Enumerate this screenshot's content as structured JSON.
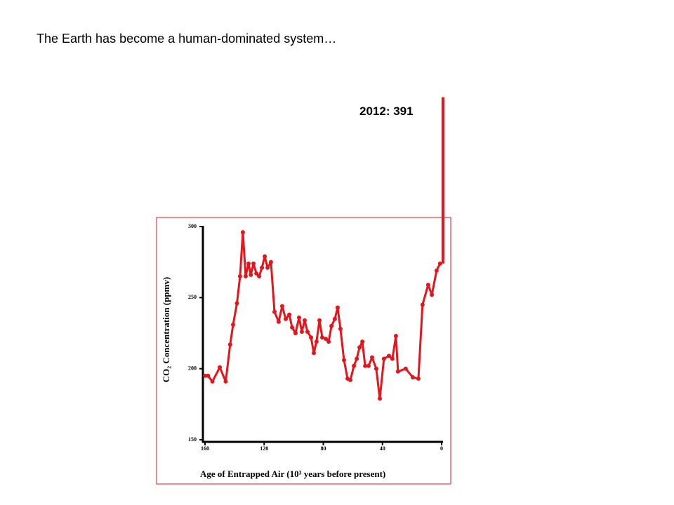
{
  "slide_title": "The Earth has become a human-dominated system…",
  "chart_data": {
    "type": "line",
    "xlabel": "Age of Entrapped Air (10³ years before present)",
    "ylabel": "CO₂ Concentration (ppmv)",
    "xlim": [
      160,
      0
    ],
    "xticks": [
      160,
      120,
      80,
      40,
      0
    ],
    "ylim": [
      150,
      300
    ],
    "yticks": [
      150,
      200,
      250,
      300
    ],
    "annotation": {
      "label": "2012: 391",
      "value": 391
    },
    "series": [
      {
        "color": "#e8141b",
        "x": [
          160,
          158,
          155,
          150,
          146,
          143,
          141,
          138.4,
          136.3,
          134.4,
          132.5,
          130.6,
          129,
          127.2,
          125.3,
          123.4,
          121.5,
          119.6,
          117.7,
          115.4,
          113,
          110.2,
          107.8,
          105.4,
          103,
          101.1,
          98.8,
          96.4,
          94.5,
          92.6,
          90.7,
          88.3,
          86.4,
          84.6,
          82.6,
          80.7,
          78.3,
          76.4,
          74.5,
          72.2,
          70.3,
          68.4,
          66,
          63.6,
          61.7,
          59.3,
          57.4,
          55.5,
          53.6,
          51.7,
          49.4,
          47,
          44.2,
          41.8,
          39,
          35.6,
          33.3,
          30.9,
          29.5,
          24.3,
          19.5,
          15.7,
          12.9,
          9.1,
          6.6,
          3.4,
          1
        ],
        "values": [
          195,
          195,
          191,
          201,
          191,
          217,
          231,
          246,
          265,
          296,
          265,
          274,
          266,
          274,
          267,
          265,
          271,
          279,
          271,
          275,
          240,
          233,
          244,
          235,
          238,
          229,
          225,
          236,
          226,
          234,
          226,
          222,
          211,
          219,
          234,
          222,
          221,
          219,
          230,
          235,
          243,
          228,
          206,
          193,
          192,
          202,
          207,
          215,
          219,
          202,
          202,
          208,
          200,
          179,
          207,
          209,
          207,
          223,
          198,
          200,
          194,
          193,
          245,
          259,
          252,
          269,
          274
        ]
      }
    ]
  }
}
